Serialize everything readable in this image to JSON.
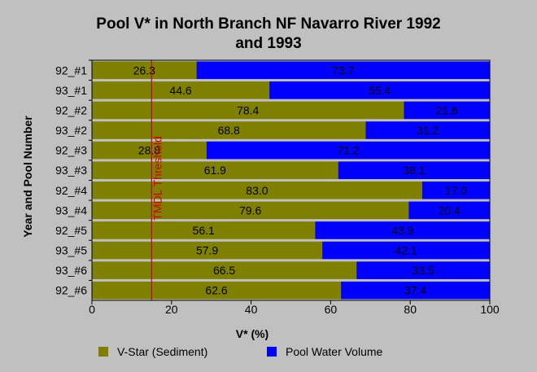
{
  "chart_data": {
    "type": "bar",
    "orientation": "horizontal",
    "stacked": true,
    "title_line1": "Pool V* in North Branch NF Navarro River 1992",
    "title_line2": "and 1993",
    "xlabel": "V* (%)",
    "ylabel": "Year and Pool Number",
    "xlim": [
      0,
      100
    ],
    "xticks": [
      "0",
      "20",
      "40",
      "60",
      "80",
      "100"
    ],
    "categories": [
      "92_#1",
      "93_#1",
      "92_#2",
      "93_#2",
      "92_#3",
      "93_#3",
      "92_#4",
      "93_#4",
      "92_#5",
      "93_#5",
      "93_#6",
      "92_#6"
    ],
    "series": [
      {
        "name": "V-Star (Sediment)",
        "color": "#808000",
        "values": [
          26.3,
          44.6,
          78.4,
          68.8,
          28.8,
          61.9,
          83.0,
          79.6,
          56.1,
          57.9,
          66.5,
          62.6
        ],
        "labels": [
          "26.3",
          "44.6",
          "78.4",
          "68.8",
          "28.8",
          "61.9",
          "83.0",
          "79.6",
          "56.1",
          "57.9",
          "66.5",
          "62.6"
        ]
      },
      {
        "name": "Pool Water Volume",
        "color": "#0000ff",
        "values": [
          73.7,
          55.4,
          21.6,
          31.2,
          71.2,
          38.1,
          17.0,
          20.4,
          43.9,
          42.1,
          33.5,
          37.4
        ],
        "labels": [
          "73.7",
          "55.4",
          "21.6",
          "31.2",
          "71.2",
          "38.1",
          "17.0",
          "20.4",
          "43.9",
          "42.1",
          "33.5",
          "37.4"
        ]
      }
    ],
    "threshold": {
      "label": "TMDL Threshold",
      "value": 15,
      "color": "#cc0000"
    },
    "legend_position": "bottom",
    "grid": false
  }
}
